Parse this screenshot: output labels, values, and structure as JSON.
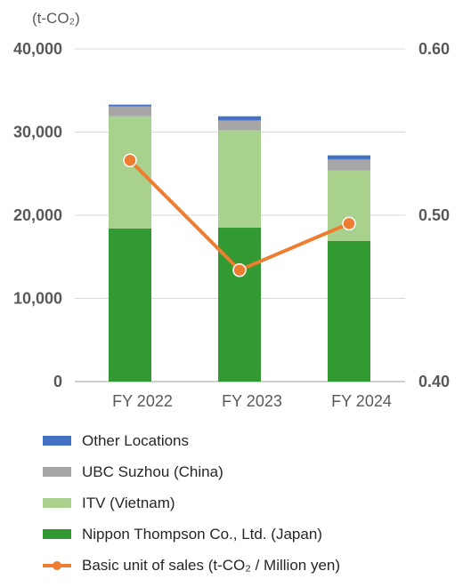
{
  "chart_data": {
    "type": "bar",
    "stacked": true,
    "left_axis_unit": "(t-CO₂)",
    "categories": [
      "FY 2022",
      "FY 2023",
      "FY 2024"
    ],
    "series": [
      {
        "name": "Nippon Thompson Co., Ltd. (Japan)",
        "values": [
          18400,
          18500,
          16900
        ],
        "color": "#339933"
      },
      {
        "name": "ITV (Vietnam)",
        "values": [
          13500,
          11700,
          8500
        ],
        "color": "#a9d18e"
      },
      {
        "name": "UBC Suzhou (China)",
        "values": [
          1200,
          1200,
          1300
        ],
        "color": "#a6a6a6"
      },
      {
        "name": "Other Locations",
        "values": [
          200,
          500,
          500
        ],
        "color": "#4472c4"
      }
    ],
    "line_series": {
      "name": "Basic unit of sales (t-CO₂ / Million yen)",
      "values": [
        0.533,
        0.467,
        0.495
      ],
      "color": "#ed7d31",
      "axis": "right"
    },
    "ylim_left": [
      0,
      40000
    ],
    "yticks_left": [
      0,
      10000,
      20000,
      30000,
      40000
    ],
    "ytick_labels_left": [
      "0",
      "10,000",
      "20,000",
      "30,000",
      "40,000"
    ],
    "ylim_right": [
      0.4,
      0.6
    ],
    "yticks_right": [
      0.4,
      0.5,
      0.6
    ],
    "ytick_labels_right": [
      "0.40",
      "0.50",
      "0.60"
    ],
    "grid": true,
    "legend_position": "bottom",
    "legend_order": [
      3,
      2,
      1,
      0,
      "line"
    ]
  },
  "legend": {
    "items": [
      {
        "label": "Other Locations",
        "color": "#4472c4",
        "kind": "bar"
      },
      {
        "label": "UBC Suzhou (China)",
        "color": "#a6a6a6",
        "kind": "bar"
      },
      {
        "label": "ITV (Vietnam)",
        "color": "#a9d18e",
        "kind": "bar"
      },
      {
        "label": "Nippon Thompson Co., Ltd. (Japan)",
        "color": "#339933",
        "kind": "bar"
      },
      {
        "label": "Basic unit of sales (t-CO₂ / Million yen)",
        "color": "#ed7d31",
        "kind": "line"
      }
    ]
  }
}
